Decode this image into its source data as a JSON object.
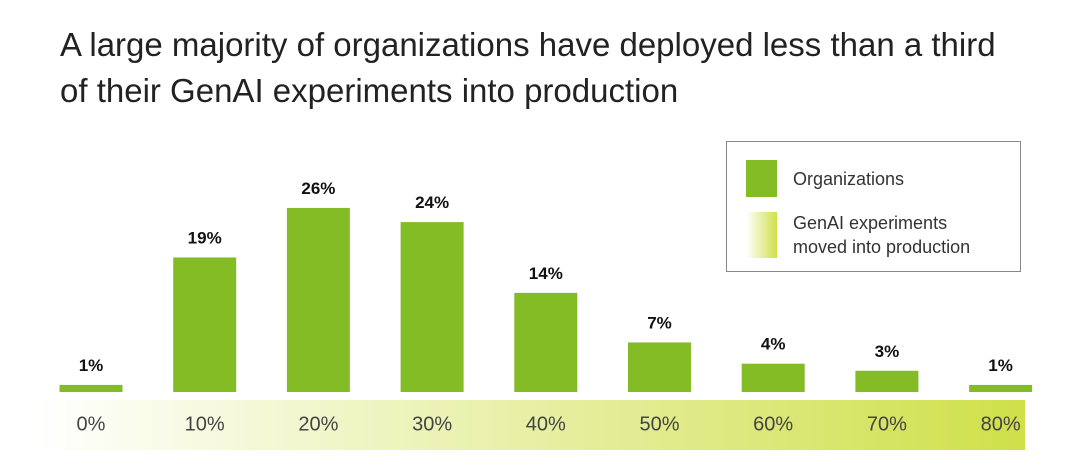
{
  "chart_data": {
    "type": "bar",
    "title": "A large majority of organizations have deployed less than a third of their GenAI experiments into production",
    "categories": [
      "0%",
      "10%",
      "20%",
      "30%",
      "40%",
      "50%",
      "60%",
      "70%",
      "80%"
    ],
    "series": [
      {
        "name": "Organizations",
        "color": "#84bc26",
        "values": [
          1,
          19,
          26,
          24,
          14,
          7,
          4,
          3,
          1
        ],
        "value_labels": [
          "1%",
          "19%",
          "26%",
          "24%",
          "14%",
          "7%",
          "4%",
          "3%",
          "1%"
        ]
      }
    ],
    "band": {
      "name": "GenAI experiments moved into production",
      "colors": [
        "#ffffff",
        "#cfe04a"
      ]
    }
  }
}
